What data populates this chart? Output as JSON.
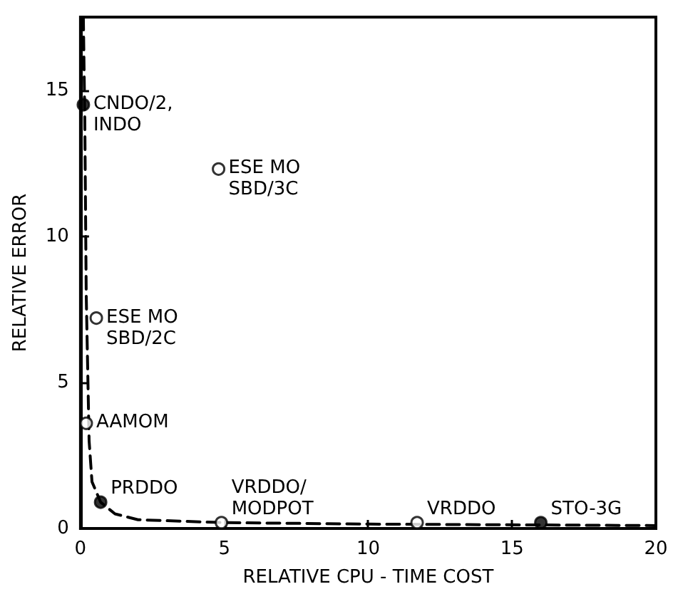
{
  "chart_data": {
    "type": "scatter",
    "xlabel": "RELATIVE CPU - TIME COST",
    "ylabel": "RELATIVE ERROR",
    "xlim": [
      0,
      20
    ],
    "xticks": [
      0,
      5,
      10,
      15,
      20
    ],
    "ylim": [
      0,
      17.5
    ],
    "yticks": [
      0,
      5,
      10,
      15
    ],
    "grid": false,
    "marker": "circle",
    "series": [
      {
        "color": "#000000",
        "x": [
          0.1,
          0.7,
          16
        ],
        "values": [
          14.5,
          0.9,
          0.2
        ]
      },
      {
        "color": "#ffffff",
        "x": [
          4.8,
          0.55,
          0.2,
          4.9,
          11.7
        ],
        "values": [
          12.3,
          7.2,
          3.6,
          0.2,
          0.2
        ]
      },
      {
        "type": "line",
        "line_style": "dashed",
        "marker": "none",
        "color": "#000000",
        "x": [
          0.1,
          0.15,
          0.2,
          0.3,
          0.4,
          0.7,
          1.2,
          2,
          5,
          10,
          20
        ],
        "values": [
          17.5,
          14,
          8,
          3,
          1.6,
          0.9,
          0.5,
          0.3,
          0.2,
          0.15,
          0.1
        ]
      }
    ],
    "annotations": [
      {
        "text": "CNDO/2,\nINDO",
        "x": 0.1,
        "y": 14.5
      },
      {
        "text": "ESE MO\nSBD/3C",
        "x": 4.8,
        "y": 12.3
      },
      {
        "text": "ESE MO\nSBD/2C",
        "x": 0.55,
        "y": 7.2
      },
      {
        "text": "AAMOM",
        "x": 0.2,
        "y": 3.6
      },
      {
        "text": "PRDDO",
        "x": 0.7,
        "y": 0.9
      },
      {
        "text": "VRDDO/\nMODPOT",
        "x": 4.9,
        "y": 0.2
      },
      {
        "text": "VRDDO",
        "x": 11.7,
        "y": 0.2
      },
      {
        "text": "STO-3G",
        "x": 16,
        "y": 0.2
      }
    ]
  }
}
